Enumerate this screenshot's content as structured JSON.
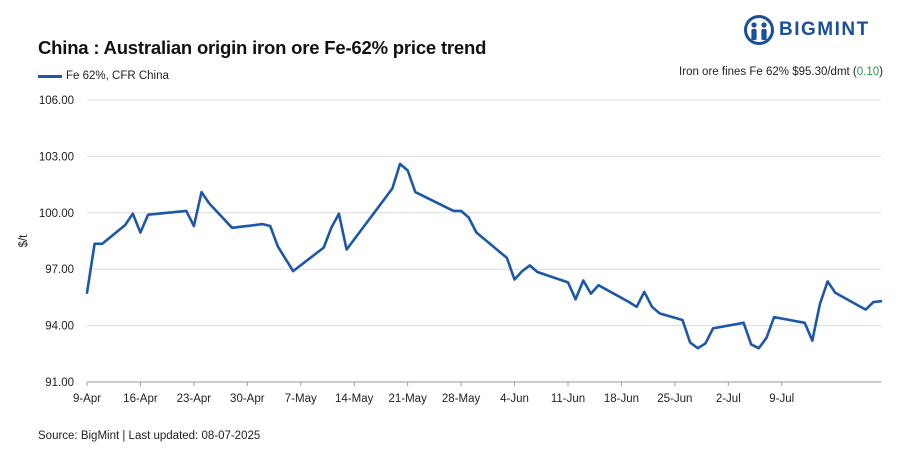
{
  "brand": {
    "name": "BIGMINT",
    "color": "#1a4f9c",
    "icon": "bigmint-logo-icon"
  },
  "chart_data": {
    "type": "line",
    "title": "China : Australian origin iron ore Fe-62% price trend",
    "ylabel": "$/t",
    "xlabel": "",
    "ylim": [
      91,
      106
    ],
    "yticks": [
      "106.00",
      "103.00",
      "100.00",
      "97.00",
      "94.00",
      "91.00"
    ],
    "ytick_values": [
      106,
      103,
      100,
      97,
      94,
      91
    ],
    "xticks": [
      "9-Apr",
      "16-Apr",
      "23-Apr",
      "30-Apr",
      "7-May",
      "14-May",
      "21-May",
      "28-May",
      "4-Jun",
      "11-Jun",
      "18-Jun",
      "25-Jun",
      "2-Jul",
      "9-Jul"
    ],
    "grid": "horizontal",
    "legend_position": "top-left",
    "series": [
      {
        "name": "Fe 62%, CFR China",
        "color": "#1d57a8",
        "points": [
          [
            "2025-04-09",
            95.75
          ],
          [
            "2025-04-10",
            98.35
          ],
          [
            "2025-04-11",
            98.35
          ],
          [
            "2025-04-14",
            99.35
          ],
          [
            "2025-04-15",
            99.95
          ],
          [
            "2025-04-16",
            98.95
          ],
          [
            "2025-04-17",
            99.9
          ],
          [
            "2025-04-22",
            100.1
          ],
          [
            "2025-04-23",
            99.3
          ],
          [
            "2025-04-24",
            101.1
          ],
          [
            "2025-04-25",
            100.5
          ],
          [
            "2025-04-28",
            99.2
          ],
          [
            "2025-05-02",
            99.4
          ],
          [
            "2025-05-03",
            99.3
          ],
          [
            "2025-05-04",
            98.2
          ],
          [
            "2025-05-06",
            96.9
          ],
          [
            "2025-05-10",
            98.15
          ],
          [
            "2025-05-11",
            99.2
          ],
          [
            "2025-05-12",
            99.95
          ],
          [
            "2025-05-13",
            98.05
          ],
          [
            "2025-05-19",
            101.3
          ],
          [
            "2025-05-20",
            102.6
          ],
          [
            "2025-05-21",
            102.25
          ],
          [
            "2025-05-22",
            101.1
          ],
          [
            "2025-05-27",
            100.1
          ],
          [
            "2025-05-28",
            100.1
          ],
          [
            "2025-05-29",
            99.75
          ],
          [
            "2025-05-30",
            98.95
          ],
          [
            "2025-06-03",
            97.6
          ],
          [
            "2025-06-04",
            96.45
          ],
          [
            "2025-06-05",
            96.9
          ],
          [
            "2025-06-06",
            97.2
          ],
          [
            "2025-06-07",
            96.85
          ],
          [
            "2025-06-11",
            96.3
          ],
          [
            "2025-06-12",
            95.4
          ],
          [
            "2025-06-13",
            96.4
          ],
          [
            "2025-06-14",
            95.7
          ],
          [
            "2025-06-15",
            96.15
          ],
          [
            "2025-06-19",
            95.25
          ],
          [
            "2025-06-20",
            95.0
          ],
          [
            "2025-06-21",
            95.8
          ],
          [
            "2025-06-22",
            95.0
          ],
          [
            "2025-06-23",
            94.65
          ],
          [
            "2025-06-26",
            94.3
          ],
          [
            "2025-06-27",
            93.1
          ],
          [
            "2025-06-28",
            92.8
          ],
          [
            "2025-06-29",
            93.05
          ],
          [
            "2025-06-30",
            93.85
          ],
          [
            "2025-07-04",
            94.15
          ],
          [
            "2025-07-05",
            93.0
          ],
          [
            "2025-07-06",
            92.8
          ],
          [
            "2025-07-07",
            93.35
          ],
          [
            "2025-07-08",
            94.45
          ],
          [
            "2025-07-12",
            94.15
          ],
          [
            "2025-07-13",
            93.2
          ],
          [
            "2025-07-14",
            95.15
          ],
          [
            "2025-07-15",
            96.35
          ],
          [
            "2025-07-16",
            95.75
          ],
          [
            "2025-07-20",
            94.85
          ],
          [
            "2025-07-21",
            95.25
          ],
          [
            "2025-07-22",
            95.3
          ]
        ]
      }
    ]
  },
  "header": {
    "legend_label": "Fe 62%, CFR China",
    "price_note_prefix": "Iron ore fines Fe 62% $95.30/dmt (",
    "price_change": "0.10",
    "price_note_suffix": ")"
  },
  "footer": {
    "source": "Source: BigMint | Last updated: 08-07-2025"
  }
}
